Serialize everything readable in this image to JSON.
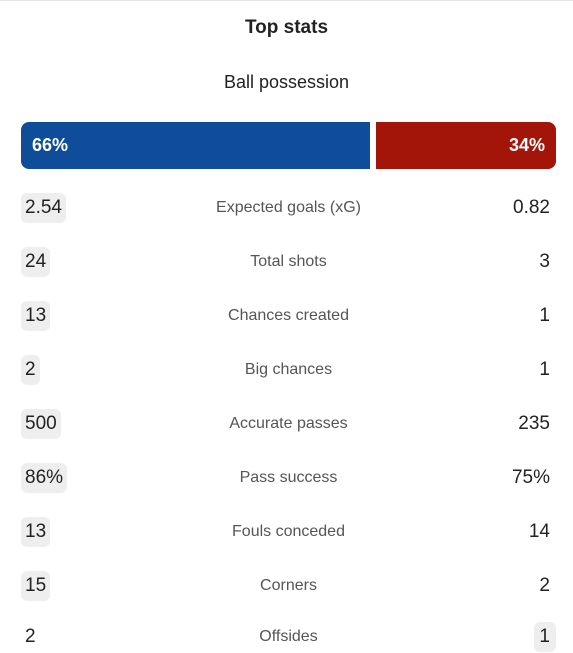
{
  "header": {
    "title": "Top stats"
  },
  "possession": {
    "label": "Ball possession",
    "home": "66%",
    "away": "34%",
    "home_fraction": 0.66,
    "away_fraction": 0.34,
    "home_color": "#0f4c9a",
    "away_color": "#a31508"
  },
  "stats": [
    {
      "label": "Expected goals (xG)",
      "home": "2.54",
      "away": "0.82",
      "home_highlight": true,
      "away_highlight": false
    },
    {
      "label": "Total shots",
      "home": "24",
      "away": "3",
      "home_highlight": true,
      "away_highlight": false
    },
    {
      "label": "Chances created",
      "home": "13",
      "away": "1",
      "home_highlight": true,
      "away_highlight": false
    },
    {
      "label": "Big chances",
      "home": "2",
      "away": "1",
      "home_highlight": true,
      "away_highlight": false
    },
    {
      "label": "Accurate passes",
      "home": "500",
      "away": "235",
      "home_highlight": true,
      "away_highlight": false
    },
    {
      "label": "Pass success",
      "home": "86%",
      "away": "75%",
      "home_highlight": true,
      "away_highlight": false
    },
    {
      "label": "Fouls conceded",
      "home": "13",
      "away": "14",
      "home_highlight": true,
      "away_highlight": false
    },
    {
      "label": "Corners",
      "home": "15",
      "away": "2",
      "home_highlight": true,
      "away_highlight": false
    },
    {
      "label": "Offsides",
      "home": "2",
      "away": "1",
      "home_highlight": false,
      "away_highlight": true
    }
  ]
}
